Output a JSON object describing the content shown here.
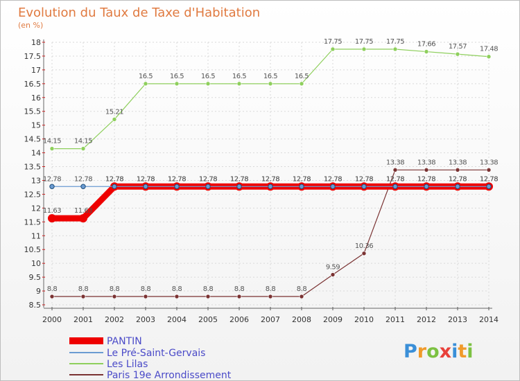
{
  "chart_data": {
    "type": "line",
    "title": "Evolution du Taux de Taxe d'Habitation",
    "unit": "(en %)",
    "x": [
      "2000",
      "2001",
      "2002",
      "2003",
      "2004",
      "2005",
      "2006",
      "2007",
      "2008",
      "2009",
      "2010",
      "2011",
      "2012",
      "2013",
      "2014"
    ],
    "y_ticks": [
      "8.5",
      "9",
      "9.5",
      "10",
      "10.5",
      "11",
      "11.5",
      "12",
      "12.5",
      "13",
      "13.5",
      "14",
      "14.5",
      "15",
      "15.5",
      "16",
      "16.5",
      "17",
      "17.5",
      "18"
    ],
    "ylim": [
      8.5,
      18
    ],
    "legend_position": "bottom-left",
    "series": [
      {
        "name": "PANTIN",
        "color": "#ee0000",
        "values": [
          11.63,
          11.63,
          12.78,
          12.78,
          12.78,
          12.78,
          12.78,
          12.78,
          12.78,
          12.78,
          12.78,
          12.78,
          12.78,
          12.78,
          12.78
        ],
        "labels": [
          "11.63",
          "11.63",
          "12.78",
          "12.78",
          "12.78",
          "12.78",
          "12.78",
          "12.78",
          "12.78",
          "12.78",
          "12.78",
          "12.78",
          "12.78",
          "12.78",
          "12.78"
        ]
      },
      {
        "name": "Le Pré-Saint-Gervais",
        "color": "#6b9bd2",
        "values": [
          12.78,
          12.78,
          12.78,
          12.78,
          12.78,
          12.78,
          12.78,
          12.78,
          12.78,
          12.78,
          12.78,
          12.78,
          12.78,
          12.78,
          12.78
        ],
        "labels": [
          "12.78",
          "12.78",
          "12.78",
          "12.78",
          "12.78",
          "12.78",
          "12.78",
          "12.78",
          "12.78",
          "12.78",
          "12.78",
          "12.78",
          "12.78",
          "12.78",
          "12.78"
        ]
      },
      {
        "name": "Les Lilas",
        "color": "#8ecf5c",
        "values": [
          14.15,
          14.15,
          15.21,
          16.5,
          16.5,
          16.5,
          16.5,
          16.5,
          16.5,
          17.75,
          17.75,
          17.75,
          17.66,
          17.57,
          17.48
        ],
        "labels": [
          "14.15",
          "14.15",
          "15.21",
          "16.5",
          "16.5",
          "16.5",
          "16.5",
          "16.5",
          "16.5",
          "17.75",
          "17.75",
          "17.75",
          "17.66",
          "17.57",
          "17.48"
        ]
      },
      {
        "name": "Paris 19e  Arrondissement",
        "color": "#7a3232",
        "values": [
          8.8,
          8.8,
          8.8,
          8.8,
          8.8,
          8.8,
          8.8,
          8.8,
          8.8,
          9.59,
          10.36,
          13.38,
          13.38,
          13.38,
          13.38
        ],
        "labels": [
          "8.8",
          "8.8",
          "8.8",
          "8.8",
          "8.8",
          "8.8",
          "8.8",
          "8.8",
          "8.8",
          "9.59",
          "10.36",
          "13.38",
          "13.38",
          "13.38",
          "13.38"
        ]
      }
    ]
  },
  "brand": {
    "letters": [
      "P",
      "r",
      "o",
      "x",
      "i",
      "t",
      "i"
    ],
    "colors": [
      "#3a8fd8",
      "#f09a2a",
      "#7cc142",
      "#e8403a",
      "#3a8fd8",
      "#f09a2a",
      "#7cc142"
    ]
  }
}
